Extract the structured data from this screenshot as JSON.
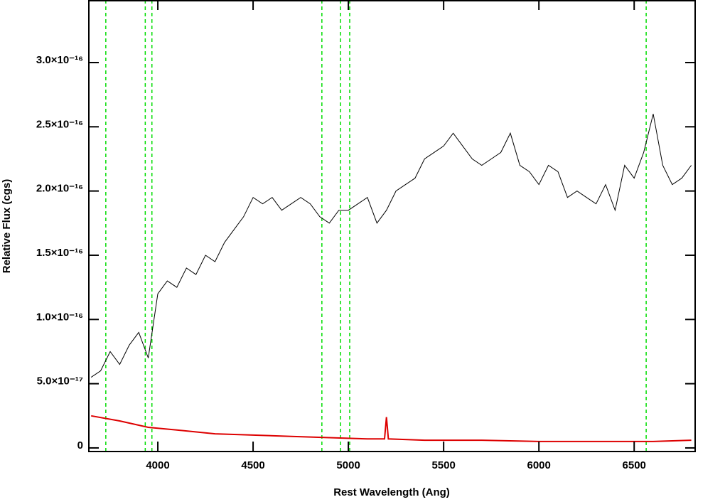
{
  "chart_data": {
    "type": "line",
    "xlabel": "Rest Wavelength (Ang)",
    "ylabel": "Relative Flux (cgs)",
    "xlim": [
      3638,
      6820
    ],
    "ylim": [
      -2.8e-18,
      3.487e-16
    ],
    "xticks": [
      4000,
      4500,
      5000,
      5500,
      6000,
      6500
    ],
    "yticks": [
      0,
      {
        "value": 5e-17,
        "label": "5.0×10⁻¹⁷"
      },
      {
        "value": 1e-16,
        "label": "1.0×10⁻¹⁶"
      },
      {
        "value": 1.5e-16,
        "label": "1.5×10⁻¹⁶"
      },
      {
        "value": 2e-16,
        "label": "2.0×10⁻¹⁶"
      },
      {
        "value": 2.5e-16,
        "label": "2.5×10⁻¹⁶"
      },
      {
        "value": 3e-16,
        "label": "3.0×10⁻¹⁶"
      }
    ],
    "vlines": [
      3727,
      3934,
      3969,
      4861,
      4959,
      5007,
      6563
    ],
    "vline_color": "#00dd00",
    "series": [
      {
        "color": "#000000",
        "x": [
          3650,
          3700,
          3750,
          3800,
          3850,
          3900,
          3950,
          4000,
          4050,
          4100,
          4150,
          4200,
          4250,
          4300,
          4350,
          4400,
          4450,
          4500,
          4550,
          4600,
          4650,
          4700,
          4750,
          4800,
          4850,
          4900,
          4950,
          5000,
          5050,
          5100,
          5150,
          5200,
          5250,
          5300,
          5350,
          5400,
          5450,
          5500,
          5550,
          5600,
          5650,
          5700,
          5750,
          5800,
          5850,
          5900,
          5950,
          6000,
          6050,
          6100,
          6150,
          6200,
          6250,
          6300,
          6350,
          6400,
          6450,
          6500,
          6550,
          6600,
          6650,
          6700,
          6750,
          6800
        ],
        "values": [
          5.5e-17,
          6e-17,
          7.5e-17,
          6.5e-17,
          8e-17,
          9e-17,
          7e-17,
          1.2e-16,
          1.3e-16,
          1.25e-16,
          1.4e-16,
          1.35e-16,
          1.5e-16,
          1.45e-16,
          1.6e-16,
          1.7e-16,
          1.8e-16,
          1.95e-16,
          1.9e-16,
          1.95e-16,
          1.85e-16,
          1.9e-16,
          1.95e-16,
          1.9e-16,
          1.8e-16,
          1.75e-16,
          1.85e-16,
          1.85e-16,
          1.9e-16,
          1.95e-16,
          1.75e-16,
          1.85e-16,
          2e-16,
          2.05e-16,
          2.1e-16,
          2.25e-16,
          2.3e-16,
          2.35e-16,
          2.45e-16,
          2.35e-16,
          2.25e-16,
          2.2e-16,
          2.25e-16,
          2.3e-16,
          2.45e-16,
          2.2e-16,
          2.15e-16,
          2.05e-16,
          2.2e-16,
          2.15e-16,
          1.95e-16,
          2e-16,
          1.95e-16,
          1.9e-16,
          2.05e-16,
          1.85e-16,
          2.2e-16,
          2.1e-16,
          2.3e-16,
          2.6e-16,
          2.2e-16,
          2.05e-16,
          2.1e-16,
          2.2e-16
        ]
      },
      {
        "color": "#dd0000",
        "x": [
          3650,
          3800,
          3950,
          4100,
          4300,
          4500,
          4700,
          4900,
          5100,
          5190,
          5200,
          5210,
          5400,
          5700,
          6000,
          6300,
          6600,
          6800
        ],
        "values": [
          2.5e-17,
          2.1e-17,
          1.6e-17,
          1.4e-17,
          1.1e-17,
          1e-17,
          9e-18,
          8e-18,
          7e-18,
          7e-18,
          2.4e-17,
          7e-18,
          6e-18,
          6e-18,
          5e-18,
          5e-18,
          5e-18,
          6e-18
        ]
      }
    ]
  }
}
